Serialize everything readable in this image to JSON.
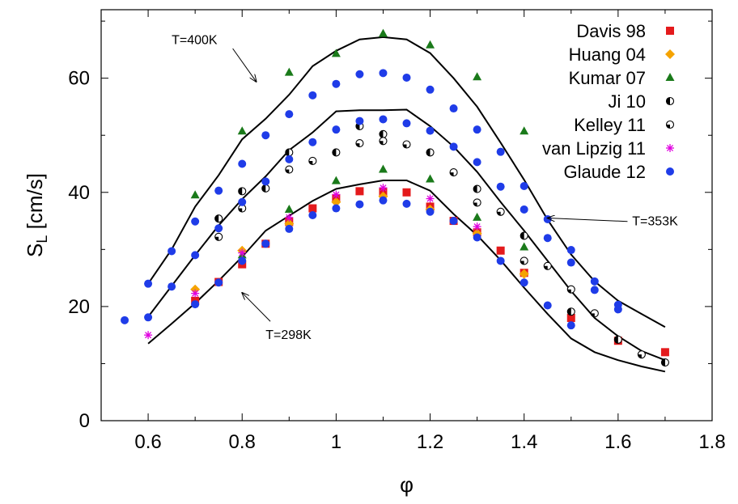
{
  "chart_data": {
    "type": "scatter",
    "title": "",
    "xlabel": "φ",
    "ylabel_main": "S",
    "ylabel_sub": "L",
    "ylabel_rest": " [cm/s]",
    "xlim": [
      0.5,
      1.8
    ],
    "ylim": [
      0,
      72
    ],
    "x_ticks": [
      0.6,
      0.8,
      1.0,
      1.2,
      1.4,
      1.6,
      1.8
    ],
    "x_tick_labels": [
      "0.6",
      "0.8",
      "1",
      "1.2",
      "1.4",
      "1.6",
      "1.8"
    ],
    "y_ticks": [
      0,
      20,
      40,
      60
    ],
    "y_tick_labels": [
      "0",
      "20",
      "40",
      "60"
    ],
    "legend_position": "top-right",
    "series": [
      {
        "name": "Davis 98",
        "marker": "square",
        "color": "#e41a1c",
        "points": [
          [
            0.7,
            21.0
          ],
          [
            0.75,
            24.3
          ],
          [
            0.8,
            27.4
          ],
          [
            0.85,
            31.0
          ],
          [
            0.9,
            34.8
          ],
          [
            0.95,
            37.2
          ],
          [
            1.0,
            39.0
          ],
          [
            1.05,
            40.2
          ],
          [
            1.1,
            40.1
          ],
          [
            1.15,
            40.0
          ],
          [
            1.2,
            37.5
          ],
          [
            1.25,
            35.0
          ],
          [
            1.3,
            33.0
          ],
          [
            1.35,
            29.8
          ],
          [
            1.4,
            25.9
          ],
          [
            1.5,
            18.0
          ],
          [
            1.6,
            14.0
          ],
          [
            1.7,
            12.0
          ]
        ]
      },
      {
        "name": "Huang 04",
        "marker": "diamond",
        "color": "#f5a300",
        "points": [
          [
            0.7,
            23.0
          ],
          [
            0.8,
            29.8
          ],
          [
            0.9,
            34.5
          ],
          [
            1.0,
            38.3
          ],
          [
            1.1,
            39.3
          ],
          [
            1.2,
            37.0
          ],
          [
            1.3,
            32.8
          ],
          [
            1.4,
            25.7
          ]
        ]
      },
      {
        "name": "Kumar 07",
        "marker": "triangle",
        "color": "#1a7a1a",
        "points": [
          [
            0.7,
            39.5
          ],
          [
            0.8,
            50.7
          ],
          [
            0.9,
            61.0
          ],
          [
            1.0,
            64.3
          ],
          [
            1.1,
            67.8
          ],
          [
            1.2,
            65.8
          ],
          [
            1.3,
            60.2
          ],
          [
            1.4,
            50.7
          ],
          [
            0.8,
            29.0
          ],
          [
            0.9,
            37.0
          ],
          [
            1.0,
            42.0
          ],
          [
            1.1,
            44.0
          ],
          [
            1.2,
            42.3
          ],
          [
            1.3,
            35.6
          ],
          [
            1.4,
            30.4
          ]
        ]
      },
      {
        "name": "Ji 10",
        "marker": "circle-half",
        "color": "#000000",
        "points": [
          [
            0.75,
            35.4
          ],
          [
            0.8,
            40.2
          ],
          [
            0.85,
            40.7
          ],
          [
            0.9,
            47.0
          ],
          [
            1.0,
            47.0
          ],
          [
            1.05,
            51.6
          ],
          [
            1.1,
            50.2
          ],
          [
            1.2,
            47.0
          ],
          [
            1.3,
            40.6
          ],
          [
            1.4,
            32.4
          ],
          [
            1.5,
            19.1
          ],
          [
            1.6,
            14.2
          ],
          [
            1.7,
            10.2
          ]
        ]
      },
      {
        "name": "Kelley 11",
        "marker": "circle-quarter",
        "color": "#000000",
        "points": [
          [
            0.75,
            32.2
          ],
          [
            0.8,
            37.2
          ],
          [
            0.9,
            44.0
          ],
          [
            0.95,
            45.5
          ],
          [
            1.05,
            48.6
          ],
          [
            1.1,
            49.0
          ],
          [
            1.15,
            48.4
          ],
          [
            1.25,
            43.5
          ],
          [
            1.3,
            38.2
          ],
          [
            1.35,
            36.6
          ],
          [
            1.4,
            28.0
          ],
          [
            1.45,
            27.1
          ],
          [
            1.5,
            23.0
          ],
          [
            1.55,
            18.8
          ],
          [
            1.65,
            11.6
          ]
        ]
      },
      {
        "name": "van Lipzig 11",
        "marker": "star",
        "color": "#e000e0",
        "points": [
          [
            0.6,
            15.0
          ],
          [
            0.7,
            22.3
          ],
          [
            0.8,
            29.4
          ],
          [
            0.9,
            35.6
          ],
          [
            1.0,
            39.6
          ],
          [
            1.1,
            40.8
          ],
          [
            1.2,
            38.9
          ],
          [
            1.3,
            34.0
          ]
        ]
      },
      {
        "name": "Glaude 12",
        "marker": "filled-circle",
        "color": "#1f3ce8",
        "points": [
          [
            0.55,
            17.6
          ],
          [
            0.6,
            24.0
          ],
          [
            0.65,
            29.7
          ],
          [
            0.7,
            34.9
          ],
          [
            0.75,
            40.3
          ],
          [
            0.8,
            45.0
          ],
          [
            0.85,
            50.0
          ],
          [
            0.9,
            53.7
          ],
          [
            0.95,
            57.0
          ],
          [
            1.0,
            59.0
          ],
          [
            1.05,
            60.7
          ],
          [
            1.1,
            60.9
          ],
          [
            1.15,
            60.1
          ],
          [
            1.2,
            58.0
          ],
          [
            1.25,
            54.7
          ],
          [
            1.3,
            51.0
          ],
          [
            1.35,
            47.1
          ],
          [
            1.4,
            41.1
          ],
          [
            1.45,
            35.3
          ],
          [
            1.5,
            29.9
          ],
          [
            1.55,
            24.4
          ],
          [
            1.6,
            20.3
          ],
          [
            0.6,
            18.1
          ],
          [
            0.65,
            23.5
          ],
          [
            0.7,
            29.0
          ],
          [
            0.75,
            33.7
          ],
          [
            0.8,
            38.3
          ],
          [
            0.85,
            41.9
          ],
          [
            0.9,
            45.8
          ],
          [
            0.95,
            48.8
          ],
          [
            1.0,
            51.0
          ],
          [
            1.05,
            52.5
          ],
          [
            1.1,
            52.8
          ],
          [
            1.15,
            52.1
          ],
          [
            1.2,
            50.8
          ],
          [
            1.25,
            48.0
          ],
          [
            1.3,
            45.3
          ],
          [
            1.35,
            41.0
          ],
          [
            1.4,
            37.0
          ],
          [
            1.45,
            32.0
          ],
          [
            1.5,
            27.7
          ],
          [
            1.55,
            22.9
          ],
          [
            1.6,
            19.5
          ],
          [
            0.7,
            20.4
          ],
          [
            0.75,
            24.2
          ],
          [
            0.8,
            28.0
          ],
          [
            0.85,
            31.0
          ],
          [
            0.9,
            33.6
          ],
          [
            0.95,
            36.0
          ],
          [
            1.0,
            37.2
          ],
          [
            1.05,
            37.9
          ],
          [
            1.1,
            38.6
          ],
          [
            1.15,
            38.0
          ],
          [
            1.2,
            36.6
          ],
          [
            1.25,
            35.0
          ],
          [
            1.3,
            32.1
          ],
          [
            1.35,
            28.0
          ],
          [
            1.4,
            24.2
          ],
          [
            1.45,
            20.2
          ],
          [
            1.5,
            16.7
          ]
        ]
      }
    ],
    "model_curves": [
      {
        "points": [
          [
            0.6,
            24
          ],
          [
            0.65,
            30
          ],
          [
            0.7,
            37.5
          ],
          [
            0.75,
            43
          ],
          [
            0.8,
            49.3
          ],
          [
            0.85,
            52.9
          ],
          [
            0.9,
            57.1
          ],
          [
            0.95,
            62.1
          ],
          [
            1.0,
            64.8
          ],
          [
            1.05,
            66.8
          ],
          [
            1.1,
            67.2
          ],
          [
            1.15,
            66.8
          ],
          [
            1.2,
            64.4
          ],
          [
            1.25,
            60.0
          ],
          [
            1.3,
            55.0
          ],
          [
            1.35,
            48.7
          ],
          [
            1.4,
            42.2
          ],
          [
            1.45,
            35.2
          ],
          [
            1.5,
            29.1
          ],
          [
            1.55,
            24.4
          ],
          [
            1.6,
            21.0
          ],
          [
            1.65,
            18.7
          ],
          [
            1.7,
            16.4
          ]
        ]
      },
      {
        "points": [
          [
            0.6,
            18.2
          ],
          [
            0.65,
            23.6
          ],
          [
            0.7,
            29
          ],
          [
            0.75,
            34.2
          ],
          [
            0.8,
            38.8
          ],
          [
            0.85,
            42.8
          ],
          [
            0.9,
            47.4
          ],
          [
            0.95,
            50.5
          ],
          [
            1.0,
            54.2
          ],
          [
            1.05,
            54.4
          ],
          [
            1.1,
            54.4
          ],
          [
            1.15,
            54.5
          ],
          [
            1.2,
            51.6
          ],
          [
            1.25,
            48
          ],
          [
            1.3,
            43.6
          ],
          [
            1.35,
            38.3
          ],
          [
            1.4,
            33.3
          ],
          [
            1.45,
            28.0
          ],
          [
            1.5,
            22.7
          ],
          [
            1.55,
            18.0
          ],
          [
            1.6,
            14.8
          ],
          [
            1.65,
            12.2
          ],
          [
            1.7,
            10.6
          ]
        ]
      },
      {
        "points": [
          [
            0.6,
            13.5
          ],
          [
            0.65,
            17
          ],
          [
            0.7,
            20.6
          ],
          [
            0.75,
            24.5
          ],
          [
            0.8,
            28.7
          ],
          [
            0.85,
            33.3
          ],
          [
            0.9,
            35.9
          ],
          [
            0.95,
            38.5
          ],
          [
            1.0,
            40.6
          ],
          [
            1.05,
            41.4
          ],
          [
            1.1,
            42.1
          ],
          [
            1.15,
            42.1
          ],
          [
            1.2,
            40.3
          ],
          [
            1.25,
            36.2
          ],
          [
            1.3,
            32.5
          ],
          [
            1.35,
            28.1
          ],
          [
            1.4,
            23.3
          ],
          [
            1.45,
            18.7
          ],
          [
            1.5,
            14.4
          ],
          [
            1.55,
            12.0
          ],
          [
            1.6,
            10.6
          ],
          [
            1.65,
            9.5
          ],
          [
            1.7,
            8.6
          ]
        ]
      }
    ],
    "annotations": [
      {
        "text": "T=400K",
        "text_at": [
          0.65,
          66.0
        ],
        "arrow_from": [
          0.78,
          65.2
        ],
        "arrow_to": [
          0.83,
          59.4
        ]
      },
      {
        "text": "T=353K",
        "text_at": [
          1.63,
          34.2
        ],
        "arrow_from": [
          1.62,
          34.9
        ],
        "arrow_to": [
          1.45,
          35.5
        ]
      },
      {
        "text": "T=298K",
        "text_at": [
          0.85,
          14.3
        ],
        "arrow_from": [
          0.86,
          17.4
        ],
        "arrow_to": [
          0.8,
          22.4
        ]
      }
    ]
  }
}
